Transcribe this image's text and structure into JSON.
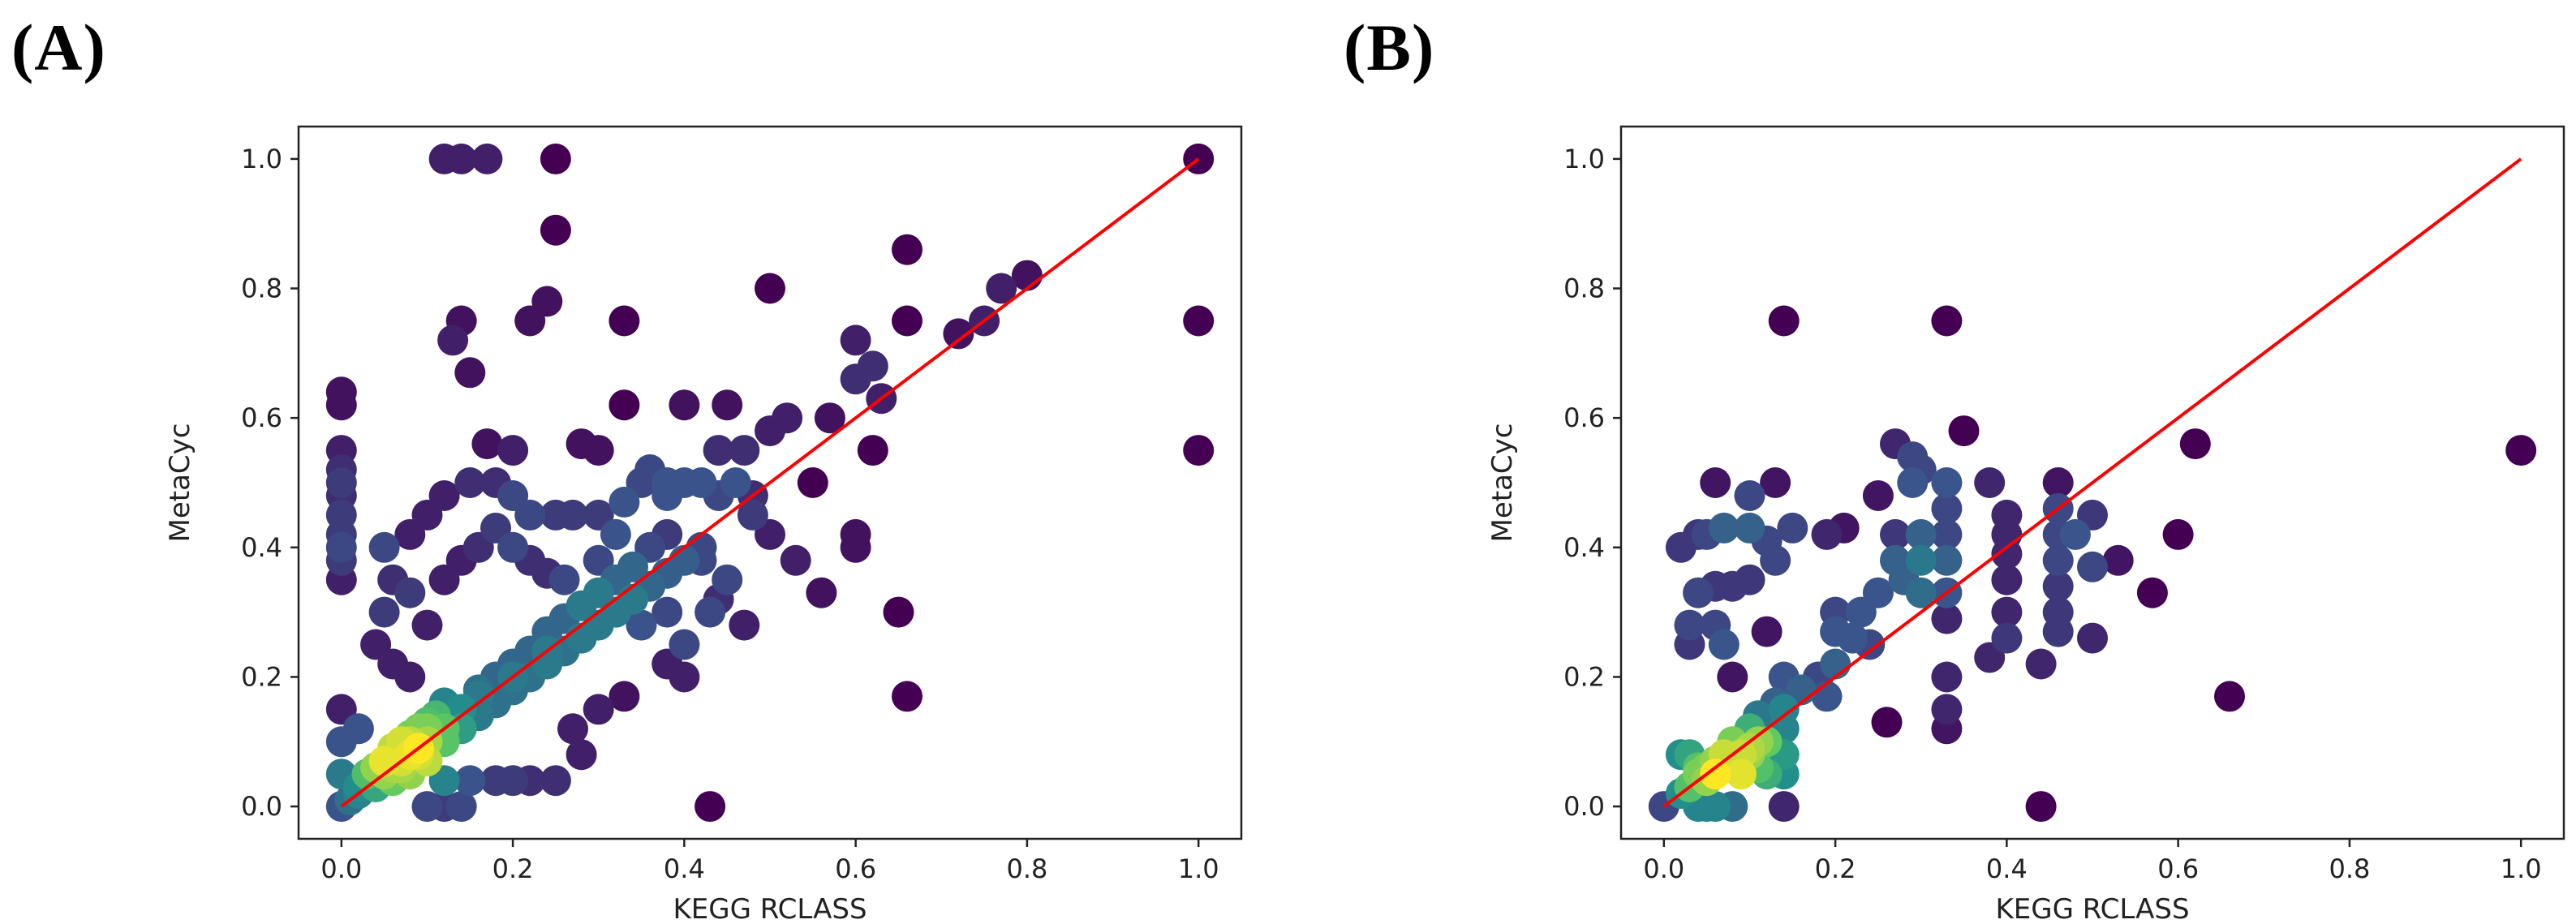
{
  "colors": {
    "low": "#440154",
    "mid": "#21918c",
    "high": "#fde725",
    "fit_line": "#ff0000"
  },
  "chart_data": [
    {
      "panel_label": "(A)",
      "type": "scatter",
      "xlabel": "KEGG RCLASS",
      "ylabel": "MetaCyc",
      "xlim": [
        -0.05,
        1.05
      ],
      "ylim": [
        -0.05,
        1.05
      ],
      "xticks": [
        "0.0",
        "0.2",
        "0.4",
        "0.6",
        "0.8",
        "1.0"
      ],
      "yticks": [
        "0.0",
        "0.2",
        "0.4",
        "0.6",
        "0.8",
        "1.0"
      ],
      "reference_line": {
        "x": [
          0,
          1
        ],
        "y": [
          0,
          1
        ]
      },
      "points": [
        [
          0.12,
          1.0
        ],
        [
          0.14,
          1.0
        ],
        [
          0.17,
          1.0
        ],
        [
          0.25,
          1.0
        ],
        [
          1.0,
          1.0
        ],
        [
          0.25,
          0.89
        ],
        [
          0.66,
          0.86
        ],
        [
          0.8,
          0.82
        ],
        [
          0.77,
          0.8
        ],
        [
          0.5,
          0.8
        ],
        [
          0.24,
          0.78
        ],
        [
          0.22,
          0.75
        ],
        [
          0.14,
          0.75
        ],
        [
          0.33,
          0.75
        ],
        [
          0.66,
          0.75
        ],
        [
          0.72,
          0.73
        ],
        [
          0.75,
          0.75
        ],
        [
          1.0,
          0.75
        ],
        [
          0.13,
          0.72
        ],
        [
          0.6,
          0.72
        ],
        [
          0.15,
          0.67
        ],
        [
          0.0,
          0.64
        ],
        [
          0.0,
          0.62
        ],
        [
          0.62,
          0.68
        ],
        [
          0.6,
          0.66
        ],
        [
          0.63,
          0.63
        ],
        [
          0.45,
          0.62
        ],
        [
          0.33,
          0.62
        ],
        [
          0.4,
          0.62
        ],
        [
          0.52,
          0.6
        ],
        [
          0.57,
          0.6
        ],
        [
          0.0,
          0.55
        ],
        [
          0.0,
          0.5
        ],
        [
          0.0,
          0.48
        ],
        [
          0.0,
          0.45
        ],
        [
          0.0,
          0.42
        ],
        [
          0.0,
          0.4
        ],
        [
          0.0,
          0.38
        ],
        [
          0.0,
          0.35
        ],
        [
          0.0,
          0.52
        ],
        [
          1.0,
          0.55
        ],
        [
          0.17,
          0.56
        ],
        [
          0.2,
          0.55
        ],
        [
          0.28,
          0.56
        ],
        [
          0.3,
          0.55
        ],
        [
          0.36,
          0.52
        ],
        [
          0.38,
          0.5
        ],
        [
          0.44,
          0.55
        ],
        [
          0.47,
          0.55
        ],
        [
          0.5,
          0.58
        ],
        [
          0.55,
          0.5
        ],
        [
          0.62,
          0.55
        ],
        [
          0.65,
          0.3
        ],
        [
          0.66,
          0.17
        ],
        [
          0.5,
          0.42
        ],
        [
          0.48,
          0.45
        ],
        [
          0.56,
          0.33
        ],
        [
          0.6,
          0.42
        ],
        [
          0.6,
          0.4
        ],
        [
          0.53,
          0.38
        ],
        [
          0.45,
          0.35
        ],
        [
          0.43,
          0.3
        ],
        [
          0.47,
          0.28
        ],
        [
          0.4,
          0.25
        ],
        [
          0.38,
          0.22
        ],
        [
          0.4,
          0.2
        ],
        [
          0.43,
          0.0
        ],
        [
          0.33,
          0.17
        ],
        [
          0.3,
          0.15
        ],
        [
          0.27,
          0.12
        ],
        [
          0.28,
          0.08
        ],
        [
          0.25,
          0.04
        ],
        [
          0.22,
          0.04
        ],
        [
          0.2,
          0.04
        ],
        [
          0.18,
          0.04
        ],
        [
          0.15,
          0.04
        ],
        [
          0.12,
          0.04
        ],
        [
          0.1,
          0.0
        ],
        [
          0.12,
          0.0
        ],
        [
          0.14,
          0.0
        ],
        [
          0.05,
          0.4
        ],
        [
          0.08,
          0.42
        ],
        [
          0.1,
          0.45
        ],
        [
          0.12,
          0.48
        ],
        [
          0.15,
          0.5
        ],
        [
          0.18,
          0.5
        ],
        [
          0.2,
          0.48
        ],
        [
          0.22,
          0.45
        ],
        [
          0.25,
          0.45
        ],
        [
          0.27,
          0.45
        ],
        [
          0.3,
          0.45
        ],
        [
          0.33,
          0.47
        ],
        [
          0.35,
          0.5
        ],
        [
          0.38,
          0.48
        ],
        [
          0.4,
          0.5
        ],
        [
          0.42,
          0.5
        ],
        [
          0.44,
          0.48
        ],
        [
          0.46,
          0.5
        ],
        [
          0.48,
          0.48
        ],
        [
          0.05,
          0.3
        ],
        [
          0.06,
          0.35
        ],
        [
          0.08,
          0.33
        ],
        [
          0.04,
          0.25
        ],
        [
          0.06,
          0.22
        ],
        [
          0.08,
          0.2
        ],
        [
          0.1,
          0.28
        ],
        [
          0.12,
          0.35
        ],
        [
          0.14,
          0.38
        ],
        [
          0.16,
          0.4
        ],
        [
          0.18,
          0.43
        ],
        [
          0.2,
          0.4
        ],
        [
          0.22,
          0.38
        ],
        [
          0.24,
          0.36
        ],
        [
          0.26,
          0.35
        ],
        [
          0.3,
          0.38
        ],
        [
          0.32,
          0.42
        ],
        [
          0.36,
          0.4
        ],
        [
          0.38,
          0.42
        ],
        [
          0.42,
          0.38
        ],
        [
          0.44,
          0.32
        ],
        [
          0.35,
          0.28
        ],
        [
          0.38,
          0.3
        ],
        [
          0.32,
          0.3
        ],
        [
          0.28,
          0.26
        ],
        [
          0.24,
          0.24
        ],
        [
          0.2,
          0.2
        ],
        [
          0.16,
          0.18
        ],
        [
          0.12,
          0.16
        ],
        [
          0.1,
          0.12
        ],
        [
          0.08,
          0.1
        ],
        [
          0.02,
          0.12
        ],
        [
          0.0,
          0.15
        ],
        [
          0.0,
          0.1
        ],
        [
          0.0,
          0.05
        ],
        [
          0.02,
          0.02
        ],
        [
          0.04,
          0.03
        ],
        [
          0.06,
          0.04
        ],
        [
          0.08,
          0.05
        ],
        [
          0.1,
          0.07
        ],
        [
          0.12,
          0.1
        ],
        [
          0.14,
          0.12
        ],
        [
          0.16,
          0.14
        ],
        [
          0.18,
          0.16
        ],
        [
          0.2,
          0.18
        ],
        [
          0.22,
          0.2
        ],
        [
          0.24,
          0.22
        ],
        [
          0.26,
          0.24
        ],
        [
          0.28,
          0.26
        ],
        [
          0.3,
          0.28
        ],
        [
          0.32,
          0.3
        ],
        [
          0.34,
          0.32
        ],
        [
          0.36,
          0.34
        ],
        [
          0.38,
          0.36
        ],
        [
          0.4,
          0.38
        ],
        [
          0.42,
          0.4
        ],
        [
          0.06,
          0.08
        ],
        [
          0.08,
          0.08
        ],
        [
          0.1,
          0.1
        ],
        [
          0.12,
          0.12
        ],
        [
          0.14,
          0.15
        ],
        [
          0.16,
          0.17
        ],
        [
          0.18,
          0.2
        ],
        [
          0.2,
          0.22
        ],
        [
          0.22,
          0.24
        ],
        [
          0.24,
          0.27
        ],
        [
          0.26,
          0.29
        ],
        [
          0.28,
          0.31
        ],
        [
          0.3,
          0.33
        ],
        [
          0.32,
          0.35
        ],
        [
          0.34,
          0.37
        ],
        [
          0.03,
          0.05
        ],
        [
          0.04,
          0.06
        ],
        [
          0.05,
          0.07
        ],
        [
          0.06,
          0.09
        ],
        [
          0.07,
          0.1
        ],
        [
          0.08,
          0.11
        ],
        [
          0.09,
          0.12
        ],
        [
          0.1,
          0.13
        ],
        [
          0.11,
          0.14
        ],
        [
          0.05,
          0.05
        ],
        [
          0.06,
          0.06
        ],
        [
          0.07,
          0.07
        ],
        [
          0.08,
          0.09
        ],
        [
          0.09,
          0.09
        ],
        [
          0.1,
          0.1
        ],
        [
          0.0,
          0.0
        ],
        [
          0.01,
          0.01
        ],
        [
          0.02,
          0.03
        ],
        [
          0.07,
          0.06
        ],
        [
          0.09,
          0.08
        ]
      ]
    },
    {
      "panel_label": "(B)",
      "type": "scatter",
      "xlabel": "KEGG RCLASS",
      "ylabel": "MetaCyc",
      "xlim": [
        -0.05,
        1.05
      ],
      "ylim": [
        -0.05,
        1.05
      ],
      "xticks": [
        "0.0",
        "0.2",
        "0.4",
        "0.6",
        "0.8",
        "1.0"
      ],
      "yticks": [
        "0.0",
        "0.2",
        "0.4",
        "0.6",
        "0.8",
        "1.0"
      ],
      "reference_line": {
        "x": [
          0,
          1
        ],
        "y": [
          0,
          1
        ]
      },
      "points": [
        [
          0.14,
          0.75
        ],
        [
          0.33,
          0.75
        ],
        [
          0.62,
          0.56
        ],
        [
          1.0,
          0.55
        ],
        [
          0.27,
          0.56
        ],
        [
          0.29,
          0.54
        ],
        [
          0.35,
          0.58
        ],
        [
          0.3,
          0.52
        ],
        [
          0.29,
          0.5
        ],
        [
          0.25,
          0.48
        ],
        [
          0.06,
          0.5
        ],
        [
          0.1,
          0.48
        ],
        [
          0.13,
          0.5
        ],
        [
          0.05,
          0.42
        ],
        [
          0.02,
          0.4
        ],
        [
          0.04,
          0.42
        ],
        [
          0.07,
          0.43
        ],
        [
          0.1,
          0.43
        ],
        [
          0.12,
          0.41
        ],
        [
          0.15,
          0.43
        ],
        [
          0.19,
          0.42
        ],
        [
          0.21,
          0.43
        ],
        [
          0.13,
          0.38
        ],
        [
          0.1,
          0.35
        ],
        [
          0.08,
          0.34
        ],
        [
          0.06,
          0.34
        ],
        [
          0.04,
          0.33
        ],
        [
          0.06,
          0.28
        ],
        [
          0.07,
          0.25
        ],
        [
          0.03,
          0.28
        ],
        [
          0.03,
          0.25
        ],
        [
          0.12,
          0.27
        ],
        [
          0.14,
          0.2
        ],
        [
          0.08,
          0.2
        ],
        [
          0.57,
          0.33
        ],
        [
          0.6,
          0.42
        ],
        [
          0.66,
          0.17
        ],
        [
          0.53,
          0.38
        ],
        [
          0.5,
          0.45
        ],
        [
          0.48,
          0.42
        ],
        [
          0.5,
          0.37
        ],
        [
          0.5,
          0.26
        ],
        [
          0.44,
          0.22
        ],
        [
          0.44,
          0.0
        ],
        [
          0.38,
          0.23
        ],
        [
          0.33,
          0.2
        ],
        [
          0.33,
          0.15
        ],
        [
          0.33,
          0.12
        ],
        [
          0.26,
          0.13
        ],
        [
          0.33,
          0.5
        ],
        [
          0.38,
          0.5
        ],
        [
          0.4,
          0.45
        ],
        [
          0.4,
          0.42
        ],
        [
          0.4,
          0.39
        ],
        [
          0.4,
          0.35
        ],
        [
          0.4,
          0.3
        ],
        [
          0.4,
          0.26
        ],
        [
          0.46,
          0.5
        ],
        [
          0.46,
          0.46
        ],
        [
          0.46,
          0.42
        ],
        [
          0.46,
          0.38
        ],
        [
          0.46,
          0.34
        ],
        [
          0.46,
          0.3
        ],
        [
          0.46,
          0.27
        ],
        [
          0.33,
          0.46
        ],
        [
          0.33,
          0.42
        ],
        [
          0.33,
          0.38
        ],
        [
          0.33,
          0.33
        ],
        [
          0.33,
          0.29
        ],
        [
          0.3,
          0.42
        ],
        [
          0.3,
          0.38
        ],
        [
          0.3,
          0.33
        ],
        [
          0.27,
          0.42
        ],
        [
          0.27,
          0.38
        ],
        [
          0.25,
          0.33
        ],
        [
          0.23,
          0.3
        ],
        [
          0.2,
          0.3
        ],
        [
          0.2,
          0.27
        ],
        [
          0.22,
          0.26
        ],
        [
          0.24,
          0.25
        ],
        [
          0.2,
          0.22
        ],
        [
          0.18,
          0.2
        ],
        [
          0.16,
          0.18
        ],
        [
          0.19,
          0.17
        ],
        [
          0.14,
          0.15
        ],
        [
          0.14,
          0.12
        ],
        [
          0.14,
          0.08
        ],
        [
          0.14,
          0.05
        ],
        [
          0.14,
          0.0
        ],
        [
          0.08,
          0.0
        ],
        [
          0.06,
          0.0
        ],
        [
          0.05,
          0.0
        ],
        [
          0.04,
          0.0
        ],
        [
          0.0,
          0.0
        ],
        [
          0.02,
          0.02
        ],
        [
          0.03,
          0.03
        ],
        [
          0.04,
          0.05
        ],
        [
          0.05,
          0.06
        ],
        [
          0.06,
          0.07
        ],
        [
          0.07,
          0.08
        ],
        [
          0.08,
          0.1
        ],
        [
          0.1,
          0.12
        ],
        [
          0.11,
          0.14
        ],
        [
          0.13,
          0.16
        ],
        [
          0.02,
          0.08
        ],
        [
          0.03,
          0.08
        ],
        [
          0.04,
          0.06
        ],
        [
          0.1,
          0.08
        ],
        [
          0.11,
          0.1
        ],
        [
          0.12,
          0.1
        ],
        [
          0.09,
          0.05
        ],
        [
          0.05,
          0.04
        ],
        [
          0.06,
          0.05
        ],
        [
          0.07,
          0.06
        ],
        [
          0.08,
          0.07
        ],
        [
          0.09,
          0.08
        ],
        [
          0.1,
          0.09
        ],
        [
          0.11,
          0.06
        ],
        [
          0.12,
          0.05
        ],
        [
          0.28,
          0.35
        ]
      ]
    }
  ]
}
